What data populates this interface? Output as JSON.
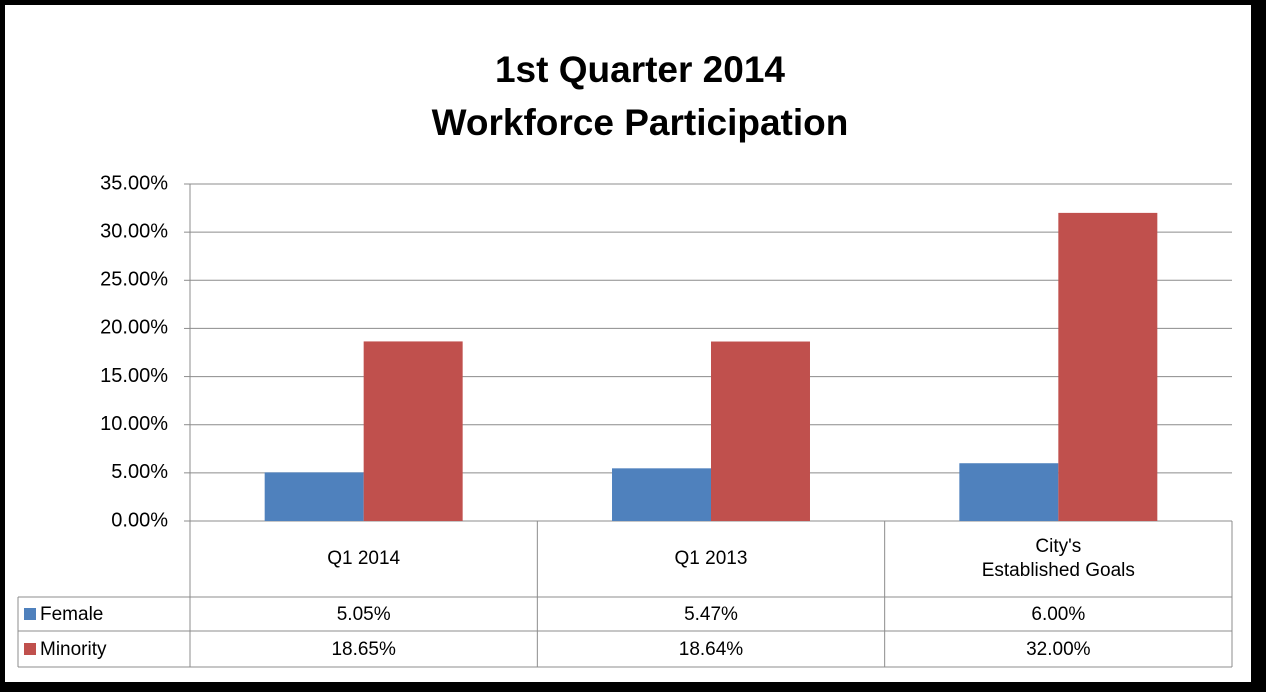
{
  "chart_data": {
    "type": "bar",
    "title": "1st Quarter 2014",
    "subtitle": "Workforce Participation",
    "categories": [
      "Q1 2014",
      "Q1 2013",
      "City's\nEstablished Goals"
    ],
    "series": [
      {
        "name": "Female",
        "color": "#4f81bd",
        "values": [
          5.05,
          5.47,
          6.0
        ],
        "value_labels": [
          "5.05%",
          "5.47%",
          "6.00%"
        ]
      },
      {
        "name": "Minority",
        "color": "#c0504d",
        "values": [
          18.65,
          18.64,
          32.0
        ],
        "value_labels": [
          "18.65%",
          "18.64%",
          "32.00%"
        ]
      }
    ],
    "ylim": [
      0,
      35
    ],
    "yticks": [
      {
        "value": 0,
        "label": "0.00%"
      },
      {
        "value": 5,
        "label": "5.00%"
      },
      {
        "value": 10,
        "label": "10.00%"
      },
      {
        "value": 15,
        "label": "15.00%"
      },
      {
        "value": 20,
        "label": "20.00%"
      },
      {
        "value": 25,
        "label": "25.00%"
      },
      {
        "value": 30,
        "label": "30.00%"
      },
      {
        "value": 35,
        "label": "35.00%"
      }
    ],
    "grid": true
  }
}
